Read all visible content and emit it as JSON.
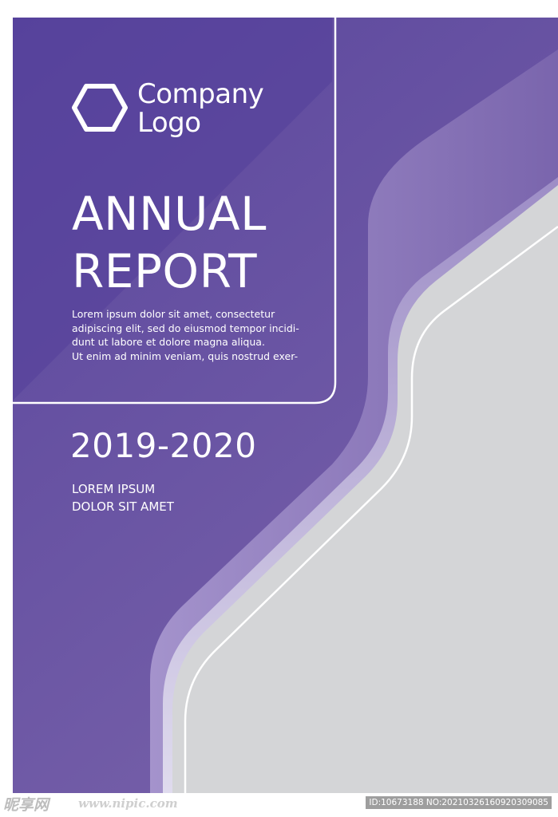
{
  "brand": {
    "logo_line1": "Company",
    "logo_line2": "Logo",
    "logo_icon": "hexagon-icon"
  },
  "report": {
    "title_line1": "ANNUAL",
    "title_line2": "REPORT",
    "intro_lines": [
      "Lorem ipsum dolor sit amet, consectetur",
      "adipiscing elit, sed do eiusmod tempor incidi-",
      "dunt ut labore et dolore magna aliqua.",
      "Ut enim ad minim veniam, quis nostrud exer-"
    ],
    "years": "2019-2020",
    "tagline_line1": "LOREM IPSUM",
    "tagline_line2": "DOLOR SIT AMET"
  },
  "watermark": {
    "logo_text": "昵享网",
    "site": "www.nipic.com",
    "id_text": "ID:10673188 NO:20210326160920309085"
  },
  "colors": {
    "primary_purple": "#6451a3",
    "deep_purple": "#574399",
    "light_purple": "#9a88c4",
    "lavender": "#d8d3e8",
    "gray_panel": "#d4d5d7",
    "outline_white": "#ffffff"
  }
}
